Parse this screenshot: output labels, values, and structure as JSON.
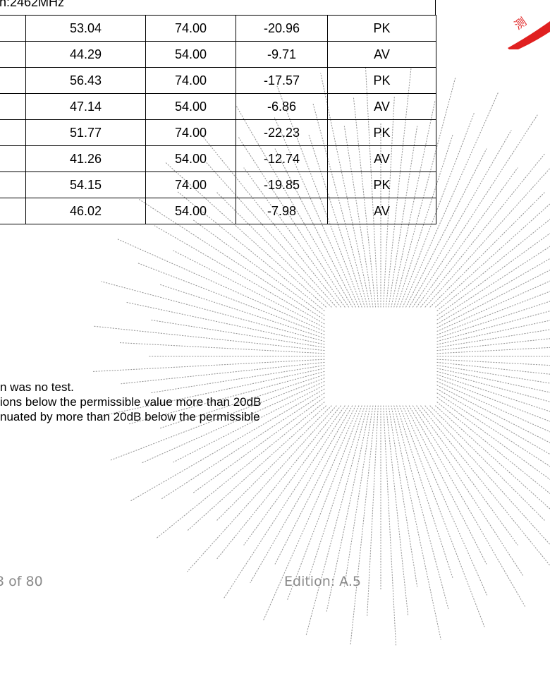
{
  "table": {
    "header_text": "n:2462MHz",
    "rows": [
      {
        "level": "53.04",
        "limit": "74.00",
        "margin": "-20.96",
        "detector": "PK"
      },
      {
        "level": "44.29",
        "limit": "54.00",
        "margin": "-9.71",
        "detector": "AV"
      },
      {
        "level": "56.43",
        "limit": "74.00",
        "margin": "-17.57",
        "detector": "PK"
      },
      {
        "level": "47.14",
        "limit": "54.00",
        "margin": "-6.86",
        "detector": "AV"
      },
      {
        "level": "51.77",
        "limit": "74.00",
        "margin": "-22.23",
        "detector": "PK"
      },
      {
        "level": "41.26",
        "limit": "54.00",
        "margin": "-12.74",
        "detector": "AV"
      },
      {
        "level": "54.15",
        "limit": "74.00",
        "margin": "-19.85",
        "detector": "PK"
      },
      {
        "level": "46.02",
        "limit": "54.00",
        "margin": "-7.98",
        "detector": "AV"
      }
    ]
  },
  "notes": {
    "line1": "n was no test.",
    "line2": "ions below the permissible value more than 20dB",
    "line3": "nuated by more than 20dB below the permissible"
  },
  "footer": {
    "page": "3 of 80",
    "edition": "Edition:  A.5"
  },
  "stamp": {
    "glyph": "测",
    "color": "#e02020"
  }
}
